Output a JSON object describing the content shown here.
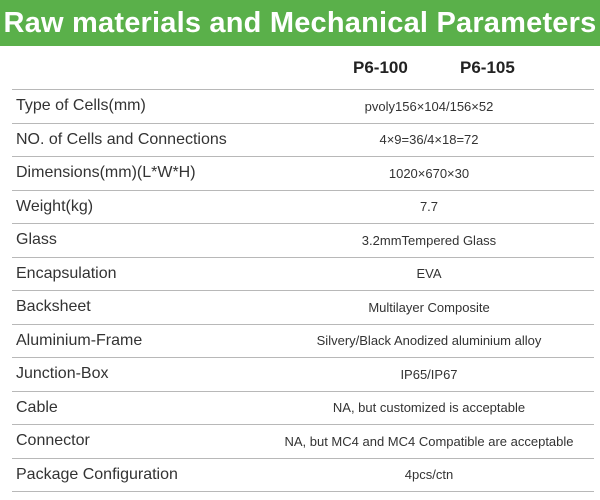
{
  "title": "Raw materials and Mechanical Parameters",
  "models": [
    "P6-100",
    "P6-105"
  ],
  "rows": [
    {
      "label": "Type of Cells(mm)",
      "value": "pvoly156×104/156×52"
    },
    {
      "label": "NO. of Cells and Connections",
      "value": "4×9=36/4×18=72"
    },
    {
      "label": "Dimensions(mm)(L*W*H)",
      "value": "1020×670×30"
    },
    {
      "label": "Weight(kg)",
      "value": "7.7"
    },
    {
      "label": "Glass",
      "value": "3.2mmTempered Glass"
    },
    {
      "label": "Encapsulation",
      "value": "EVA"
    },
    {
      "label": "Backsheet",
      "value": "Multilayer Composite"
    },
    {
      "label": "Aluminium-Frame",
      "value": "Silvery/Black Anodized aluminium alloy"
    },
    {
      "label": "Junction-Box",
      "value": "IP65/IP67"
    },
    {
      "label": "Cable",
      "value": "NA, but customized is acceptable"
    },
    {
      "label": "Connector",
      "value": "NA, but MC4 and MC4 Compatible are acceptable"
    },
    {
      "label": "Package Configuration",
      "value": "4pcs/ctn"
    }
  ],
  "colors": {
    "banner": "#5ab04a",
    "banner_text": "#ffffff",
    "rule": "#b8b8b8"
  }
}
